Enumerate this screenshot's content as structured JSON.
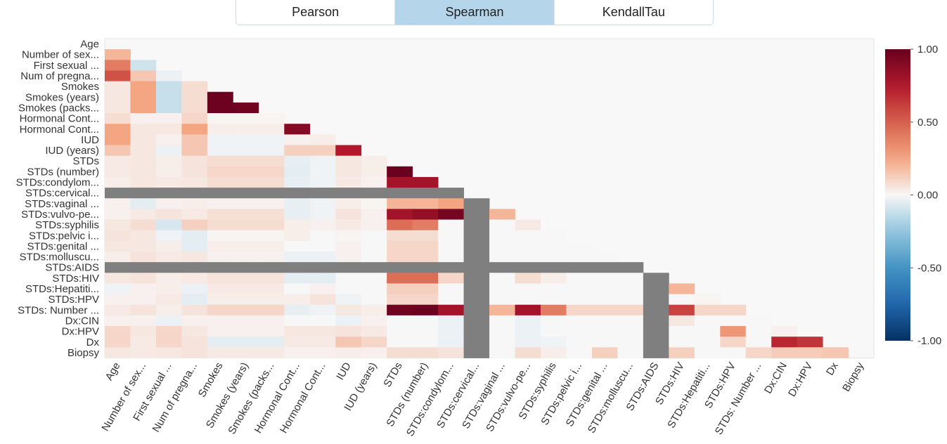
{
  "tabs": [
    {
      "label": "Pearson",
      "active": false
    },
    {
      "label": "Spearman",
      "active": true
    },
    {
      "label": "KendallTau",
      "active": false
    }
  ],
  "chart_data": {
    "type": "heatmap",
    "title": "",
    "row_labels": [
      "Age",
      "Number of sex...",
      "First sexual ...",
      "Num of pregna...",
      "Smokes",
      "Smokes (years)",
      "Smokes (packs...",
      "Hormonal Cont...",
      "Hormonal Cont...",
      "IUD",
      "IUD (years)",
      "STDs",
      "STDs (number)",
      "STDs:condylom...",
      "STDs:cervical...",
      "STDs:vaginal ...",
      "STDs:vulvo-pe...",
      "STDs:syphilis",
      "STDs:pelvic i...",
      "STDs:genital ...",
      "STDs:molluscu...",
      "STDs:AIDS",
      "STDs:HIV",
      "STDs:Hepatiti...",
      "STDs:HPV",
      "STDs: Number ...",
      "Dx:CIN",
      "Dx:HPV",
      "Dx",
      "Biopsy"
    ],
    "col_labels": [
      "Age",
      "Number of sex...",
      "First sexual ...",
      "Num of pregna...",
      "Smokes",
      "Smokes (years)",
      "Smokes (packs...",
      "Hormonal Cont...",
      "Hormonal Cont...",
      "IUD",
      "IUD (years)",
      "STDs",
      "STDs (number)",
      "STDs:condylom...",
      "STDs:cervical...",
      "STDs:vaginal ...",
      "STDs:vulvo-pe...",
      "STDs:syphilis",
      "STDs:pelvic i...",
      "STDs:genital ...",
      "STDs:molluscu...",
      "STDs:AIDS",
      "STDs:HIV",
      "STDs:Hepatiti...",
      "STDs:HPV",
      "STDs: Number ...",
      "Dx:CIN",
      "Dx:HPV",
      "Dx",
      "Biopsy"
    ],
    "values": [
      [
        null,
        null,
        null,
        null,
        null,
        null,
        null,
        null,
        null,
        null,
        null,
        null,
        null,
        null,
        null,
        null,
        null,
        null,
        null,
        null,
        null,
        null,
        null,
        null,
        null,
        null,
        null,
        null,
        null,
        null
      ],
      [
        0.2,
        null,
        null,
        null,
        null,
        null,
        null,
        null,
        null,
        null,
        null,
        null,
        null,
        null,
        null,
        null,
        null,
        null,
        null,
        null,
        null,
        null,
        null,
        null,
        null,
        null,
        null,
        null,
        null,
        null
      ],
      [
        0.4,
        -0.1,
        null,
        null,
        null,
        null,
        null,
        null,
        null,
        null,
        null,
        null,
        null,
        null,
        null,
        null,
        null,
        null,
        null,
        null,
        null,
        null,
        null,
        null,
        null,
        null,
        null,
        null,
        null,
        null
      ],
      [
        0.55,
        0.15,
        -0.03,
        null,
        null,
        null,
        null,
        null,
        null,
        null,
        null,
        null,
        null,
        null,
        null,
        null,
        null,
        null,
        null,
        null,
        null,
        null,
        null,
        null,
        null,
        null,
        null,
        null,
        null,
        null
      ],
      [
        0.05,
        0.25,
        -0.12,
        0.08,
        null,
        null,
        null,
        null,
        null,
        null,
        null,
        null,
        null,
        null,
        null,
        null,
        null,
        null,
        null,
        null,
        null,
        null,
        null,
        null,
        null,
        null,
        null,
        null,
        null,
        null
      ],
      [
        0.05,
        0.25,
        -0.12,
        0.08,
        0.98,
        null,
        null,
        null,
        null,
        null,
        null,
        null,
        null,
        null,
        null,
        null,
        null,
        null,
        null,
        null,
        null,
        null,
        null,
        null,
        null,
        null,
        null,
        null,
        null,
        null
      ],
      [
        0.05,
        0.25,
        -0.12,
        0.08,
        0.98,
        0.97,
        null,
        null,
        null,
        null,
        null,
        null,
        null,
        null,
        null,
        null,
        null,
        null,
        null,
        null,
        null,
        null,
        null,
        null,
        null,
        null,
        null,
        null,
        null,
        null
      ],
      [
        0.08,
        0.02,
        0.02,
        0.1,
        0.01,
        0.01,
        0.01,
        null,
        null,
        null,
        null,
        null,
        null,
        null,
        null,
        null,
        null,
        null,
        null,
        null,
        null,
        null,
        null,
        null,
        null,
        null,
        null,
        null,
        null,
        null
      ],
      [
        0.25,
        0.05,
        0.05,
        0.25,
        0.03,
        0.03,
        0.03,
        0.9,
        null,
        null,
        null,
        null,
        null,
        null,
        null,
        null,
        null,
        null,
        null,
        null,
        null,
        null,
        null,
        null,
        null,
        null,
        null,
        null,
        null,
        null
      ],
      [
        0.25,
        0.05,
        0.02,
        0.15,
        -0.02,
        -0.02,
        -0.02,
        0.02,
        0.03,
        null,
        null,
        null,
        null,
        null,
        null,
        null,
        null,
        null,
        null,
        null,
        null,
        null,
        null,
        null,
        null,
        null,
        null,
        null,
        null,
        null
      ],
      [
        0.15,
        0.05,
        -0.03,
        0.15,
        -0.02,
        -0.02,
        -0.02,
        0.12,
        0.12,
        0.75,
        null,
        null,
        null,
        null,
        null,
        null,
        null,
        null,
        null,
        null,
        null,
        null,
        null,
        null,
        null,
        null,
        null,
        null,
        null,
        null
      ],
      [
        0.04,
        0.05,
        0.03,
        0.06,
        0.08,
        0.08,
        0.08,
        -0.04,
        -0.02,
        0.05,
        0.03,
        null,
        null,
        null,
        null,
        null,
        null,
        null,
        null,
        null,
        null,
        null,
        null,
        null,
        null,
        null,
        null,
        null,
        null,
        null
      ],
      [
        0.04,
        0.05,
        0.03,
        0.06,
        0.1,
        0.1,
        0.1,
        -0.05,
        -0.02,
        0.05,
        0.03,
        0.99,
        null,
        null,
        null,
        null,
        null,
        null,
        null,
        null,
        null,
        null,
        null,
        null,
        null,
        null,
        null,
        null,
        null,
        null
      ],
      [
        0.03,
        0.05,
        0.04,
        0.05,
        0.08,
        0.08,
        0.08,
        -0.04,
        -0.02,
        0.04,
        0.02,
        0.8,
        0.8,
        null,
        null,
        null,
        null,
        null,
        null,
        null,
        null,
        null,
        null,
        null,
        null,
        null,
        null,
        null,
        null,
        null
      ],
      [
        "NaN",
        "NaN",
        "NaN",
        "NaN",
        "NaN",
        "NaN",
        "NaN",
        "NaN",
        "NaN",
        "NaN",
        "NaN",
        "NaN",
        "NaN",
        "NaN",
        null,
        null,
        null,
        null,
        null,
        null,
        null,
        null,
        null,
        null,
        null,
        null,
        null,
        null,
        null,
        null
      ],
      [
        0.02,
        -0.05,
        0.02,
        0.03,
        0.02,
        0.02,
        0.02,
        -0.04,
        -0.02,
        0.03,
        0.01,
        0.2,
        0.2,
        0.25,
        "NaN",
        null,
        null,
        null,
        null,
        null,
        null,
        null,
        null,
        null,
        null,
        null,
        null,
        null,
        null,
        null
      ],
      [
        0.02,
        0.04,
        0.06,
        0.04,
        0.07,
        0.07,
        0.07,
        -0.04,
        -0.02,
        0.06,
        0.02,
        0.8,
        0.85,
        0.95,
        "NaN",
        0.2,
        null,
        null,
        null,
        null,
        null,
        null,
        null,
        null,
        null,
        null,
        null,
        null,
        null,
        null
      ],
      [
        0.05,
        0.08,
        -0.08,
        0.12,
        0.08,
        0.08,
        0.08,
        0.03,
        0.02,
        0.04,
        0.02,
        0.45,
        0.4,
        0.0,
        "NaN",
        0.0,
        0.04,
        null,
        null,
        null,
        null,
        null,
        null,
        null,
        null,
        null,
        null,
        null,
        null,
        null
      ],
      [
        0.06,
        0.05,
        -0.02,
        -0.05,
        0.01,
        0.01,
        0.01,
        0.03,
        0.0,
        0.01,
        0.0,
        0.08,
        0.08,
        0.0,
        "NaN",
        0.0,
        0.0,
        0.0,
        null,
        null,
        null,
        null,
        null,
        null,
        null,
        null,
        null,
        null,
        null,
        null
      ],
      [
        0.05,
        0.05,
        0.03,
        -0.05,
        0.03,
        0.03,
        0.03,
        0.0,
        0.0,
        0.02,
        0.0,
        0.1,
        0.1,
        0.0,
        "NaN",
        0.0,
        0.0,
        0.0,
        0.0,
        null,
        null,
        null,
        null,
        null,
        null,
        null,
        null,
        null,
        null,
        null
      ],
      [
        0.03,
        0.06,
        0.04,
        0.05,
        0.02,
        0.02,
        0.02,
        -0.03,
        -0.03,
        0.02,
        0.0,
        0.1,
        0.1,
        0.0,
        "NaN",
        0.0,
        0.0,
        0.0,
        0.0,
        0.0,
        null,
        null,
        null,
        null,
        null,
        null,
        null,
        null,
        null,
        null
      ],
      [
        "NaN",
        "NaN",
        "NaN",
        "NaN",
        "NaN",
        "NaN",
        "NaN",
        "NaN",
        "NaN",
        "NaN",
        "NaN",
        "NaN",
        "NaN",
        "NaN",
        "NaN",
        "NaN",
        "NaN",
        "NaN",
        "NaN",
        "NaN",
        "NaN",
        null,
        null,
        null,
        null,
        null,
        null,
        null,
        null,
        null
      ],
      [
        0.05,
        0.06,
        0.03,
        0.04,
        0.06,
        0.06,
        0.06,
        -0.05,
        -0.05,
        0.0,
        0.0,
        0.45,
        0.45,
        0.1,
        "NaN",
        0.0,
        0.08,
        0.03,
        0.0,
        0.0,
        0.0,
        "NaN",
        null,
        null,
        null,
        null,
        null,
        null,
        null,
        null
      ],
      [
        -0.02,
        0.02,
        0.03,
        -0.03,
        0.04,
        0.04,
        0.04,
        0.0,
        0.02,
        0.0,
        0.0,
        0.12,
        0.12,
        0.0,
        "NaN",
        0.0,
        0.0,
        0.0,
        0.0,
        0.0,
        0.0,
        "NaN",
        0.2,
        null,
        null,
        null,
        null,
        null,
        null,
        null
      ],
      [
        0.02,
        0.02,
        0.04,
        -0.05,
        0.03,
        0.03,
        0.03,
        0.03,
        0.06,
        -0.02,
        0.0,
        0.1,
        0.1,
        0.0,
        "NaN",
        0.0,
        0.0,
        0.0,
        0.0,
        0.0,
        0.0,
        "NaN",
        0.0,
        0.01,
        null,
        null,
        null,
        null,
        null,
        null
      ],
      [
        0.04,
        0.06,
        0.03,
        0.06,
        0.1,
        0.1,
        0.1,
        -0.04,
        -0.02,
        0.05,
        0.03,
        0.97,
        0.98,
        0.8,
        "NaN",
        0.2,
        0.8,
        0.4,
        0.1,
        0.1,
        0.1,
        "NaN",
        0.6,
        0.1,
        0.1,
        null,
        null,
        null,
        null,
        null
      ],
      [
        0.02,
        0.02,
        -0.03,
        0.02,
        0.02,
        0.02,
        0.02,
        0.0,
        0.0,
        -0.03,
        0.02,
        0.0,
        0.0,
        -0.03,
        "NaN",
        0.0,
        -0.03,
        0.0,
        0.0,
        0.0,
        0.0,
        "NaN",
        0.05,
        0.0,
        0.0,
        0.0,
        null,
        null,
        null,
        null
      ],
      [
        0.1,
        0.05,
        0.1,
        0.05,
        0.02,
        0.02,
        0.02,
        0.05,
        0.05,
        0.06,
        0.04,
        0.0,
        0.0,
        -0.03,
        "NaN",
        0.0,
        -0.03,
        0.0,
        0.0,
        0.0,
        0.0,
        "NaN",
        0.0,
        0.0,
        0.3,
        0.0,
        0.02,
        null,
        null,
        null
      ],
      [
        0.1,
        0.04,
        0.1,
        0.06,
        -0.05,
        -0.05,
        -0.05,
        0.04,
        0.04,
        0.15,
        0.1,
        0.0,
        0.0,
        -0.03,
        "NaN",
        0.0,
        -0.03,
        -0.02,
        0.0,
        0.0,
        0.0,
        "NaN",
        0.0,
        0.0,
        0.1,
        0.0,
        0.7,
        0.65,
        null,
        null
      ],
      [
        0.05,
        0.04,
        0.05,
        0.06,
        0.04,
        0.04,
        0.04,
        0.02,
        0.02,
        0.03,
        0.02,
        0.08,
        0.08,
        0.06,
        "NaN",
        0.0,
        0.08,
        0.03,
        0.0,
        0.12,
        0.0,
        "NaN",
        0.12,
        0.0,
        0.0,
        0.1,
        0.13,
        0.13,
        0.15,
        null
      ]
    ],
    "colorbar": {
      "ticks": [
        "1.00",
        "0.50",
        "0.00",
        "-0.50",
        "-1.00"
      ],
      "colorscale": "RdBu"
    },
    "nan_color": "#7f7f7f",
    "upper_triangle_color": "#f8f8f8"
  }
}
